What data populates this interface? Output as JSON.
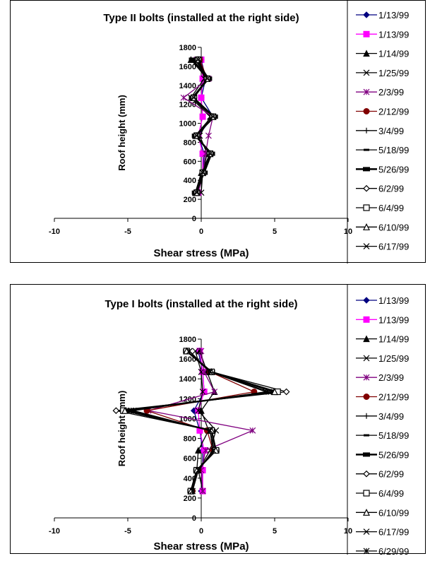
{
  "chart_data": [
    {
      "type": "line",
      "title": "Type II bolts (installed at the right side)",
      "xlabel": "Shear stress (MPa)",
      "ylabel": "Roof height (mm)",
      "xlim": [
        -10,
        10
      ],
      "ylim": [
        0,
        1800
      ],
      "x_ticks": [
        "-10",
        "-5",
        "0",
        "5",
        "10"
      ],
      "y_ticks": [
        "0",
        "200",
        "400",
        "600",
        "800",
        "1000",
        "1200",
        "1400",
        "1600",
        "1800"
      ],
      "heights": [
        270,
        480,
        680,
        870,
        1070,
        1270,
        1470,
        1670
      ],
      "series": [
        {
          "name": "1/13/99",
          "color": "#000080",
          "marker": "diamond",
          "x": [
            -0.3,
            0.1,
            0.2,
            -0.2,
            0.8,
            0.0,
            0.3,
            0.0
          ]
        },
        {
          "name": "1/13/99",
          "color": "#ff00ff",
          "marker": "square",
          "x": [
            -0.2,
            0.1,
            0.1,
            -0.2,
            0.1,
            0.0,
            0.1,
            0.0
          ]
        },
        {
          "name": "1/14/99",
          "color": "#000000",
          "marker": "triangle",
          "x": [
            -0.4,
            0.0,
            0.6,
            -0.4,
            0.7,
            -0.6,
            0.4,
            -0.7
          ]
        },
        {
          "name": "1/25/99",
          "color": "#000000",
          "marker": "x",
          "x": [
            0.0,
            0.1,
            0.4,
            -0.1,
            0.6,
            -0.7,
            0.2,
            -0.1
          ]
        },
        {
          "name": "2/3/99",
          "color": "#800080",
          "marker": "star",
          "x": [
            -0.2,
            0.1,
            0.3,
            0.5,
            0.8,
            -1.2,
            0.5,
            -0.3
          ]
        },
        {
          "name": "2/12/99",
          "color": "#800000",
          "marker": "circle",
          "x": [
            -0.3,
            0.1,
            0.6,
            -0.3,
            0.8,
            -0.5,
            0.4,
            -0.1
          ]
        },
        {
          "name": "3/4/99",
          "color": "#000000",
          "marker": "plus",
          "x": [
            -0.3,
            0.2,
            0.7,
            -0.4,
            0.9,
            -0.5,
            0.5,
            -0.3
          ]
        },
        {
          "name": "5/18/99",
          "color": "#000000",
          "marker": "dash",
          "x": [
            -0.4,
            0.1,
            0.7,
            -0.4,
            0.9,
            -0.6,
            0.5,
            -0.4
          ]
        },
        {
          "name": "5/26/99",
          "color": "#000000",
          "marker": "bar",
          "x": [
            -0.4,
            0.2,
            0.7,
            -0.4,
            0.9,
            -0.6,
            0.5,
            -0.6
          ]
        },
        {
          "name": "6/2/99",
          "color": "#000000",
          "marker": "diamond-open",
          "x": [
            -0.3,
            0.1,
            0.6,
            -0.3,
            0.8,
            -0.5,
            0.4,
            -0.2
          ]
        },
        {
          "name": "6/4/99",
          "color": "#000000",
          "marker": "square-open",
          "x": [
            -0.3,
            0.1,
            0.6,
            -0.3,
            0.8,
            -0.5,
            0.4,
            -0.2
          ]
        },
        {
          "name": "6/10/99",
          "color": "#000000",
          "marker": "triangle-open",
          "x": [
            -0.3,
            0.1,
            0.6,
            -0.3,
            0.8,
            -0.5,
            0.4,
            -0.2
          ]
        },
        {
          "name": "6/17/99",
          "color": "#000000",
          "marker": "x",
          "x": [
            -0.3,
            0.1,
            0.6,
            -0.3,
            0.8,
            -0.5,
            0.4,
            -0.2
          ]
        }
      ]
    },
    {
      "type": "line",
      "title": "Type I bolts (installed at the right side)",
      "xlabel": "Shear stress (MPa)",
      "ylabel": "Roof height (mm)",
      "xlim": [
        -10,
        10
      ],
      "ylim": [
        0,
        1800
      ],
      "x_ticks": [
        "-10",
        "-5",
        "0",
        "5",
        "10"
      ],
      "y_ticks": [
        "0",
        "200",
        "400",
        "600",
        "800",
        "1000",
        "1200",
        "1400",
        "1600",
        "1800"
      ],
      "heights": [
        270,
        480,
        680,
        880,
        1080,
        1270,
        1470,
        1680
      ],
      "series": [
        {
          "name": "1/13/99",
          "color": "#000080",
          "marker": "diamond",
          "x": [
            0.0,
            0.1,
            0.1,
            -0.1,
            -0.5,
            0.2,
            0.1,
            -0.2
          ]
        },
        {
          "name": "1/13/99",
          "color": "#ff00ff",
          "marker": "square",
          "x": [
            0.1,
            0.1,
            0.2,
            -0.1,
            -0.2,
            0.2,
            0.1,
            -0.1
          ]
        },
        {
          "name": "1/14/99",
          "color": "#000000",
          "marker": "triangle",
          "x": [
            -0.7,
            -0.3,
            -0.2,
            0.5,
            0.0,
            0.9,
            0.4,
            -0.1
          ]
        },
        {
          "name": "1/25/99",
          "color": "#000000",
          "marker": "x",
          "x": [
            0.1,
            -0.2,
            0.6,
            1.0,
            -0.2,
            0.1,
            0.0,
            -0.4
          ]
        },
        {
          "name": "2/3/99",
          "color": "#800080",
          "marker": "star",
          "x": [
            0.1,
            0.0,
            0.3,
            3.5,
            -3.6,
            0.9,
            0.2,
            0.0
          ]
        },
        {
          "name": "2/12/99",
          "color": "#800000",
          "marker": "circle",
          "x": [
            -0.6,
            -0.2,
            0.8,
            0.4,
            -3.7,
            3.6,
            0.6,
            -1.0
          ]
        },
        {
          "name": "3/4/99",
          "color": "#000000",
          "marker": "plus",
          "x": [
            -0.6,
            -0.2,
            0.9,
            0.6,
            -4.9,
            4.9,
            0.6,
            -1.0
          ]
        },
        {
          "name": "5/18/99",
          "color": "#000000",
          "marker": "dash",
          "x": [
            -0.7,
            -0.3,
            1.0,
            0.7,
            -5.2,
            5.0,
            0.7,
            -1.0
          ]
        },
        {
          "name": "5/26/99",
          "color": "#000000",
          "marker": "bar",
          "x": [
            -0.7,
            -0.3,
            1.0,
            0.7,
            -5.2,
            5.1,
            0.7,
            -1.0
          ]
        },
        {
          "name": "6/2/99",
          "color": "#000000",
          "marker": "diamond-open",
          "x": [
            -0.7,
            -0.3,
            1.0,
            0.7,
            -5.8,
            5.8,
            0.7,
            -1.0
          ]
        },
        {
          "name": "6/4/99",
          "color": "#000000",
          "marker": "square-open",
          "x": [
            -0.7,
            -0.3,
            1.0,
            0.7,
            -5.3,
            5.2,
            0.7,
            -1.0
          ]
        },
        {
          "name": "6/10/99",
          "color": "#000000",
          "marker": "triangle-open",
          "x": [
            -0.7,
            -0.3,
            1.0,
            0.7,
            -5.2,
            5.0,
            0.7,
            -1.0
          ]
        },
        {
          "name": "6/17/99",
          "color": "#000000",
          "marker": "x",
          "x": [
            -0.6,
            -0.2,
            0.8,
            0.6,
            -4.8,
            4.6,
            0.6,
            -0.8
          ]
        },
        {
          "name": "6/29/99",
          "color": "#000000",
          "marker": "star",
          "x": [
            -0.6,
            -0.2,
            0.8,
            0.6,
            -4.6,
            4.4,
            0.6,
            -0.8
          ]
        }
      ]
    }
  ]
}
